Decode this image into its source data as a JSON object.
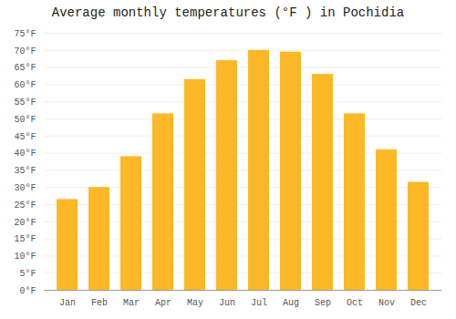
{
  "chart_data": {
    "type": "bar",
    "title": "Average monthly temperatures (°F ) in Pochidia",
    "categories": [
      "Jan",
      "Feb",
      "Mar",
      "Apr",
      "May",
      "Jun",
      "Jul",
      "Aug",
      "Sep",
      "Oct",
      "Nov",
      "Dec"
    ],
    "values": [
      26.5,
      30.0,
      39.0,
      51.5,
      61.5,
      67.0,
      70.0,
      69.5,
      63.0,
      51.5,
      41.0,
      31.5
    ],
    "color": "#FDB827",
    "ylim": [
      0,
      75
    ],
    "yticks": [
      {
        "value": 0,
        "label": "0°F"
      },
      {
        "value": 5,
        "label": "5°F"
      },
      {
        "value": 10,
        "label": "10°F"
      },
      {
        "value": 15,
        "label": "15°F"
      },
      {
        "value": 20,
        "label": "20°F"
      },
      {
        "value": 25,
        "label": "25°F"
      },
      {
        "value": 30,
        "label": "30°F"
      },
      {
        "value": 35,
        "label": "35°F"
      },
      {
        "value": 40,
        "label": "40°F"
      },
      {
        "value": 45,
        "label": "45°F"
      },
      {
        "value": 50,
        "label": "50°F"
      },
      {
        "value": 55,
        "label": "55°F"
      },
      {
        "value": 60,
        "label": "60°F"
      },
      {
        "value": 65,
        "label": "65°F"
      },
      {
        "value": 70,
        "label": "70°F"
      },
      {
        "value": 75,
        "label": "75°F"
      }
    ],
    "grid": true
  }
}
